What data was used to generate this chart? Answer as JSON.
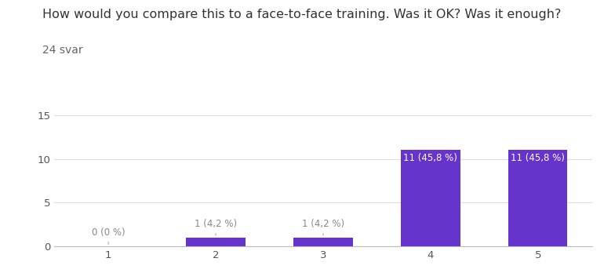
{
  "title": "How would you compare this to a face-to-face training. Was it OK? Was it enough?",
  "subtitle": "24 svar",
  "categories": [
    1,
    2,
    3,
    4,
    5
  ],
  "values": [
    0,
    1,
    1,
    11,
    11
  ],
  "labels": [
    "0 (0 %)",
    "1 (4,2 %)",
    "1 (4,2 %)",
    "11 (45,8 %)",
    "11 (45,8 %)"
  ],
  "bar_color": "#6633cc",
  "label_color_inside": "#ffffff",
  "label_color_outside": "#888888",
  "background_color": "#ffffff",
  "ylim": [
    0,
    16
  ],
  "yticks": [
    0,
    5,
    10,
    15
  ],
  "grid_color": "#dddddd",
  "title_fontsize": 11.5,
  "subtitle_fontsize": 10,
  "label_fontsize": 8.5,
  "tick_fontsize": 9.5,
  "bar_width": 0.55
}
